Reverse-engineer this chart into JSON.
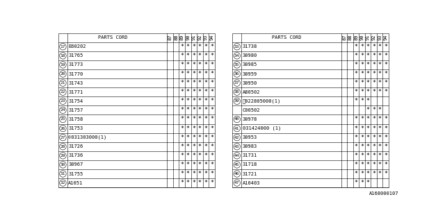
{
  "diagram_code": "A168000107",
  "left_table": {
    "rows": [
      {
        "num": 17,
        "part": "E60202",
        "marks": [
          0,
          0,
          1,
          1,
          1,
          1,
          1,
          1
        ]
      },
      {
        "num": 18,
        "part": "31765",
        "marks": [
          0,
          0,
          1,
          1,
          1,
          1,
          1,
          1
        ]
      },
      {
        "num": 19,
        "part": "31773",
        "marks": [
          0,
          0,
          1,
          1,
          1,
          1,
          1,
          1
        ]
      },
      {
        "num": 20,
        "part": "31770",
        "marks": [
          0,
          0,
          1,
          1,
          1,
          1,
          1,
          1
        ]
      },
      {
        "num": 21,
        "part": "31743",
        "marks": [
          0,
          0,
          1,
          1,
          1,
          1,
          1,
          1
        ]
      },
      {
        "num": 22,
        "part": "31771",
        "marks": [
          0,
          0,
          1,
          1,
          1,
          1,
          1,
          1
        ]
      },
      {
        "num": 23,
        "part": "31754",
        "marks": [
          0,
          0,
          1,
          1,
          1,
          1,
          1,
          1
        ]
      },
      {
        "num": 24,
        "part": "31757",
        "marks": [
          0,
          0,
          1,
          1,
          1,
          1,
          1,
          1
        ]
      },
      {
        "num": 25,
        "part": "31758",
        "marks": [
          0,
          0,
          1,
          1,
          1,
          1,
          1,
          1
        ]
      },
      {
        "num": 26,
        "part": "31753",
        "marks": [
          0,
          0,
          1,
          1,
          1,
          1,
          1,
          1
        ]
      },
      {
        "num": 27,
        "part": "©031303000(1)",
        "marks": [
          0,
          0,
          1,
          1,
          1,
          1,
          1,
          1
        ]
      },
      {
        "num": 28,
        "part": "31726",
        "marks": [
          0,
          0,
          1,
          1,
          1,
          1,
          1,
          1
        ]
      },
      {
        "num": 29,
        "part": "31736",
        "marks": [
          0,
          0,
          1,
          1,
          1,
          1,
          1,
          1
        ]
      },
      {
        "num": 30,
        "part": "30967",
        "marks": [
          0,
          0,
          1,
          1,
          1,
          1,
          1,
          1
        ]
      },
      {
        "num": 31,
        "part": "31755",
        "marks": [
          0,
          0,
          1,
          1,
          1,
          1,
          1,
          1
        ]
      },
      {
        "num": 32,
        "part": "A1051",
        "marks": [
          0,
          0,
          1,
          1,
          1,
          1,
          1,
          1
        ]
      }
    ]
  },
  "right_table": {
    "rows": [
      {
        "num": 33,
        "part": "31738",
        "marks": [
          0,
          0,
          1,
          1,
          1,
          1,
          1,
          1
        ]
      },
      {
        "num": 34,
        "part": "30980",
        "marks": [
          0,
          0,
          1,
          1,
          1,
          1,
          1,
          1
        ]
      },
      {
        "num": 35,
        "part": "30985",
        "marks": [
          0,
          0,
          1,
          1,
          1,
          1,
          1,
          1
        ]
      },
      {
        "num": 36,
        "part": "30959",
        "marks": [
          0,
          0,
          1,
          1,
          1,
          1,
          1,
          1
        ]
      },
      {
        "num": 37,
        "part": "30950",
        "marks": [
          0,
          0,
          1,
          1,
          1,
          1,
          1,
          1
        ]
      },
      {
        "num": 38,
        "part": "A80502",
        "marks": [
          0,
          0,
          1,
          1,
          1,
          1,
          1,
          1
        ]
      },
      {
        "num": 39,
        "part": "ⓝ022805000(1)",
        "marks": [
          0,
          0,
          1,
          1,
          1,
          0,
          0,
          0
        ],
        "subpart": "C00502",
        "submarks": [
          0,
          0,
          0,
          0,
          1,
          1,
          1,
          0
        ]
      },
      {
        "num": 40,
        "part": "30978",
        "marks": [
          0,
          0,
          1,
          1,
          1,
          1,
          1,
          1
        ]
      },
      {
        "num": 41,
        "part": "031424000 (1)",
        "marks": [
          0,
          0,
          1,
          1,
          1,
          1,
          1,
          1
        ]
      },
      {
        "num": 42,
        "part": "30953",
        "marks": [
          0,
          0,
          1,
          1,
          1,
          1,
          1,
          1
        ]
      },
      {
        "num": 43,
        "part": "30983",
        "marks": [
          0,
          0,
          1,
          1,
          1,
          1,
          1,
          1
        ]
      },
      {
        "num": 44,
        "part": "31731",
        "marks": [
          0,
          0,
          1,
          1,
          1,
          1,
          1,
          1
        ]
      },
      {
        "num": 45,
        "part": "31718",
        "marks": [
          0,
          0,
          1,
          1,
          1,
          1,
          1,
          1
        ]
      },
      {
        "num": 46,
        "part": "31721",
        "marks": [
          0,
          0,
          1,
          1,
          1,
          1,
          1,
          1
        ]
      },
      {
        "num": 47,
        "part": "A10403",
        "marks": [
          0,
          0,
          1,
          1,
          1,
          0,
          0,
          0
        ]
      }
    ]
  },
  "year_labels": [
    "87",
    "88",
    "89",
    "90",
    "91",
    "92",
    "93",
    "94"
  ],
  "bg_color": "#ffffff",
  "line_color": "#000000",
  "text_color": "#000000",
  "font_size": 5.0,
  "mark_font_size": 6.0,
  "header_font_size": 5.0,
  "num_font_size": 4.5
}
